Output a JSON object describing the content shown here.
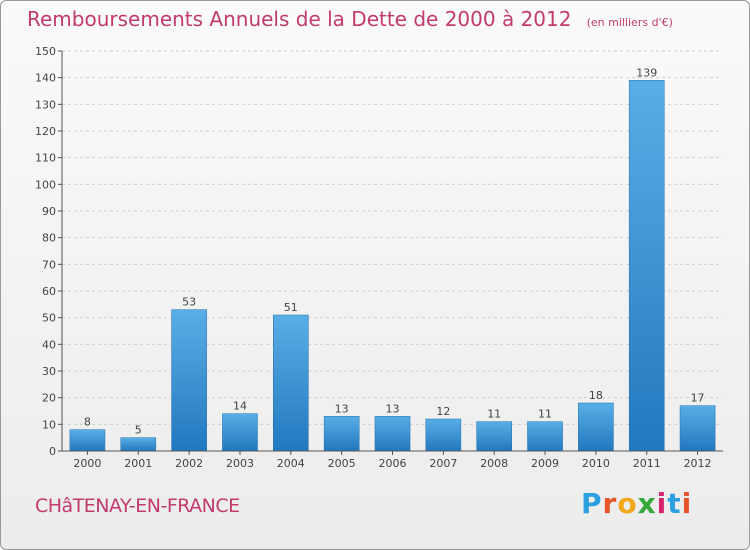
{
  "header": {
    "title": "Remboursements Annuels de la Dette de 2000 à 2012",
    "subtitle": "(en milliers d'€)"
  },
  "footer": {
    "city": "CHâTENAY-EN-FRANCE",
    "brand_letters": [
      "P",
      "r",
      "o",
      "x",
      "i",
      "t",
      "i"
    ],
    "brand_colors": [
      "#2aa0de",
      "#e8542a",
      "#f0a81a",
      "#35a83c",
      "#d6246e",
      "#2aa0de",
      "#e8542a"
    ]
  },
  "chart_data": {
    "type": "bar",
    "categories": [
      "2000",
      "2001",
      "2002",
      "2003",
      "2004",
      "2005",
      "2006",
      "2007",
      "2008",
      "2009",
      "2010",
      "2011",
      "2012"
    ],
    "values": [
      8,
      5,
      53,
      14,
      51,
      13,
      13,
      12,
      11,
      11,
      18,
      139,
      17
    ],
    "title": "Remboursements Annuels de la Dette de 2000 à 2012",
    "subtitle": "(en milliers d'€)",
    "xlabel": "",
    "ylabel": "",
    "ylim": [
      0,
      150
    ],
    "yticks": [
      0,
      10,
      20,
      30,
      40,
      50,
      60,
      70,
      80,
      90,
      100,
      110,
      120,
      130,
      140,
      150
    ],
    "grid": true,
    "bar_color_top": "#5aaee6",
    "bar_color_bottom": "#2278be"
  }
}
